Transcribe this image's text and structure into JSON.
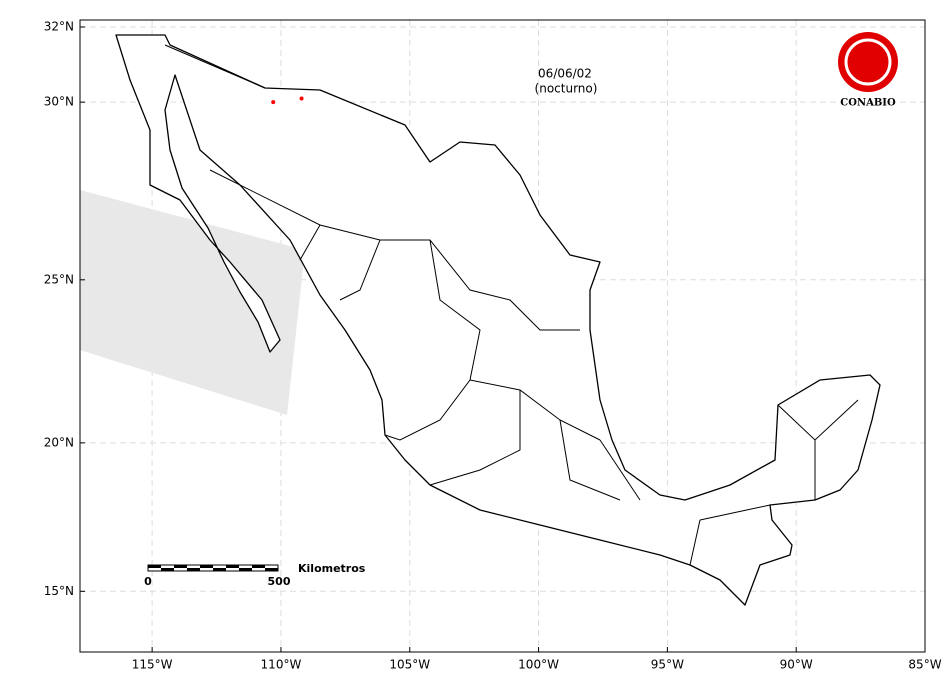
{
  "map": {
    "date": "06/06/02",
    "period": "(nocturno)",
    "logo": "CONABIO",
    "scale_bar": {
      "label": "Kilometros",
      "start": "0",
      "end": "500"
    },
    "xlim": [
      -117.8,
      -85
    ],
    "ylim": [
      12.8,
      32
    ],
    "xticks": [
      {
        "value": -115,
        "label": "115°W"
      },
      {
        "value": -110,
        "label": "110°W"
      },
      {
        "value": -105,
        "label": "105°W"
      },
      {
        "value": -100,
        "label": "100°W"
      },
      {
        "value": -95,
        "label": "95°W"
      },
      {
        "value": -90,
        "label": "90°W"
      },
      {
        "value": -85,
        "label": "85°W"
      }
    ],
    "yticks": [
      {
        "value": 15,
        "label": "15°N"
      },
      {
        "value": 20,
        "label": "20°N"
      },
      {
        "value": 25,
        "label": "25°N"
      },
      {
        "value": 30,
        "label": "30°N"
      },
      {
        "value": 32,
        "label": "32°N"
      }
    ],
    "grid": true,
    "hotspots": {
      "color": "#ff0000",
      "x": [
        -110.3,
        -109.2
      ],
      "y": [
        30.0,
        30.1
      ]
    }
  }
}
